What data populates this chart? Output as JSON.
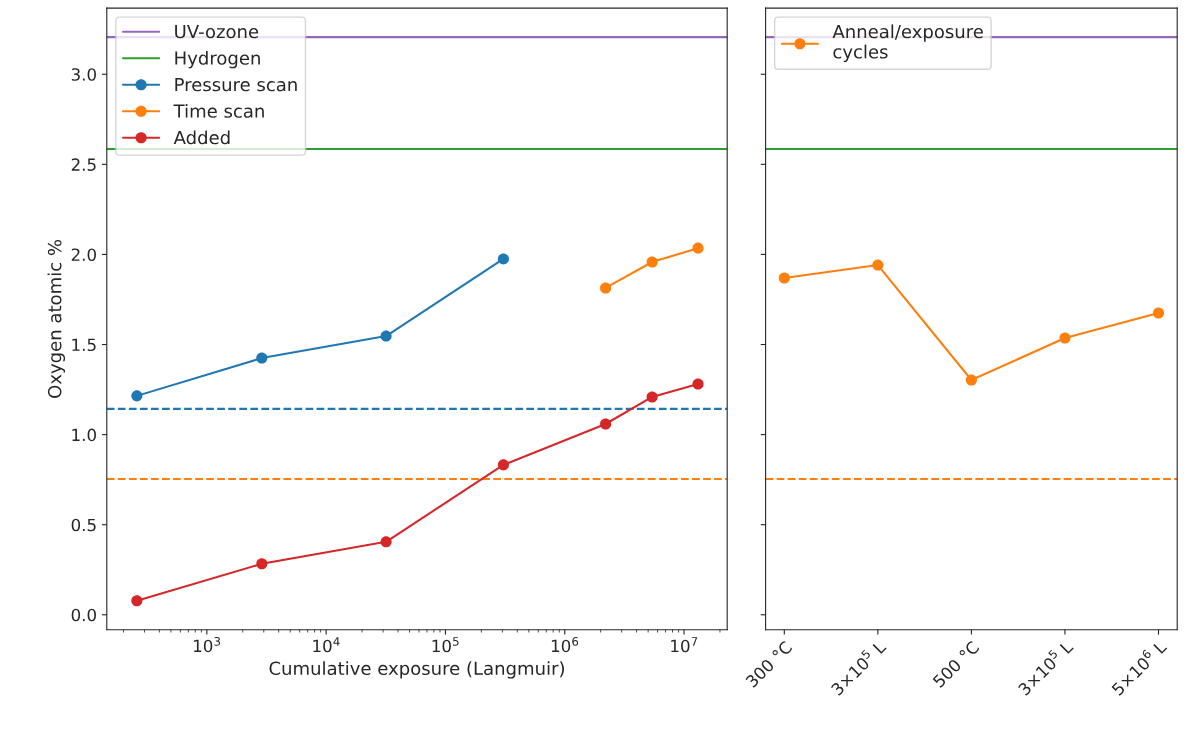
{
  "chart_data": [
    {
      "type": "line",
      "xlabel": "Cumulative exposure (Langmuir)",
      "ylabel": "Oxygen atomic %",
      "log": "x",
      "xlim": [
        145,
        23000000
      ],
      "ylim": [
        -0.083,
        3.367
      ],
      "xticks": [
        {
          "value": 1000,
          "label": "10$^{3}$"
        },
        {
          "value": 10000,
          "label": "10$^{4}$"
        },
        {
          "value": 100000,
          "label": "10$^{5}$"
        },
        {
          "value": 1000000,
          "label": "10$^{6}$"
        },
        {
          "value": 10000000,
          "label": "10$^{7}$"
        }
      ],
      "yticks": [
        {
          "value": 0,
          "label": "0.0"
        },
        {
          "value": 0.5,
          "label": "0.5"
        },
        {
          "value": 1,
          "label": "1.0"
        },
        {
          "value": 1.5,
          "label": "1.5"
        },
        {
          "value": 2,
          "label": "2.0"
        },
        {
          "value": 2.5,
          "label": "2.5"
        },
        {
          "value": 3,
          "label": "3.0"
        }
      ],
      "grid": false,
      "legend": "top left",
      "marker": "circle",
      "line_style": "solid",
      "ref_lines": [
        {
          "axis": "y",
          "value": 3.206,
          "label": "UV-ozone",
          "color": "#9467bd",
          "line_style": "solid"
        },
        {
          "axis": "y",
          "value": 2.585,
          "label": "Hydrogen",
          "color": "#2ca02c",
          "line_style": "solid"
        },
        {
          "axis": "y",
          "value": 1.143,
          "color": "#1f77b4",
          "line_style": "dashed"
        },
        {
          "axis": "y",
          "value": 0.754,
          "color": "#ff7f0e",
          "line_style": "dashed"
        }
      ],
      "series": [
        {
          "name": "Pressure scan",
          "color": "#1f77b4",
          "x": [
            259,
            2890,
            31800,
            306000
          ],
          "values": [
            1.215,
            1.425,
            1.547,
            1.975
          ]
        },
        {
          "name": "Time scan",
          "color": "#ff7f0e",
          "x": [
            2200000,
            5400000,
            13100000
          ],
          "values": [
            1.814,
            1.958,
            2.035
          ]
        },
        {
          "name": "Added",
          "color": "#d62728",
          "x": [
            259,
            2890,
            31800,
            306000,
            2200000,
            5400000,
            13100000
          ],
          "values": [
            0.078,
            0.283,
            0.405,
            0.832,
            1.059,
            1.209,
            1.281
          ]
        }
      ]
    },
    {
      "type": "line",
      "categories": [
        "300 °C",
        "3×10$^{5}$ L",
        "500 °C",
        "3×10$^{5}$ L",
        "5×10$^{6}$ L"
      ],
      "ylim": [
        -0.083,
        3.367
      ],
      "yticks": [
        0,
        0.5,
        1,
        1.5,
        2,
        2.5,
        3
      ],
      "tick_labels": "x",
      "grid": false,
      "legend": "top left",
      "marker": "circle",
      "line_style": "solid",
      "ref_lines": [
        {
          "axis": "y",
          "value": 3.206,
          "color": "#9467bd",
          "line_style": "solid"
        },
        {
          "axis": "y",
          "value": 2.585,
          "color": "#2ca02c",
          "line_style": "solid"
        },
        {
          "axis": "y",
          "value": 0.754,
          "color": "#ff7f0e",
          "line_style": "dashed"
        }
      ],
      "series": [
        {
          "name": "Anneal/exposure\ncycles",
          "color": "#ff7f0e",
          "values": [
            1.869,
            1.941,
            1.303,
            1.536,
            1.675
          ]
        }
      ]
    }
  ]
}
